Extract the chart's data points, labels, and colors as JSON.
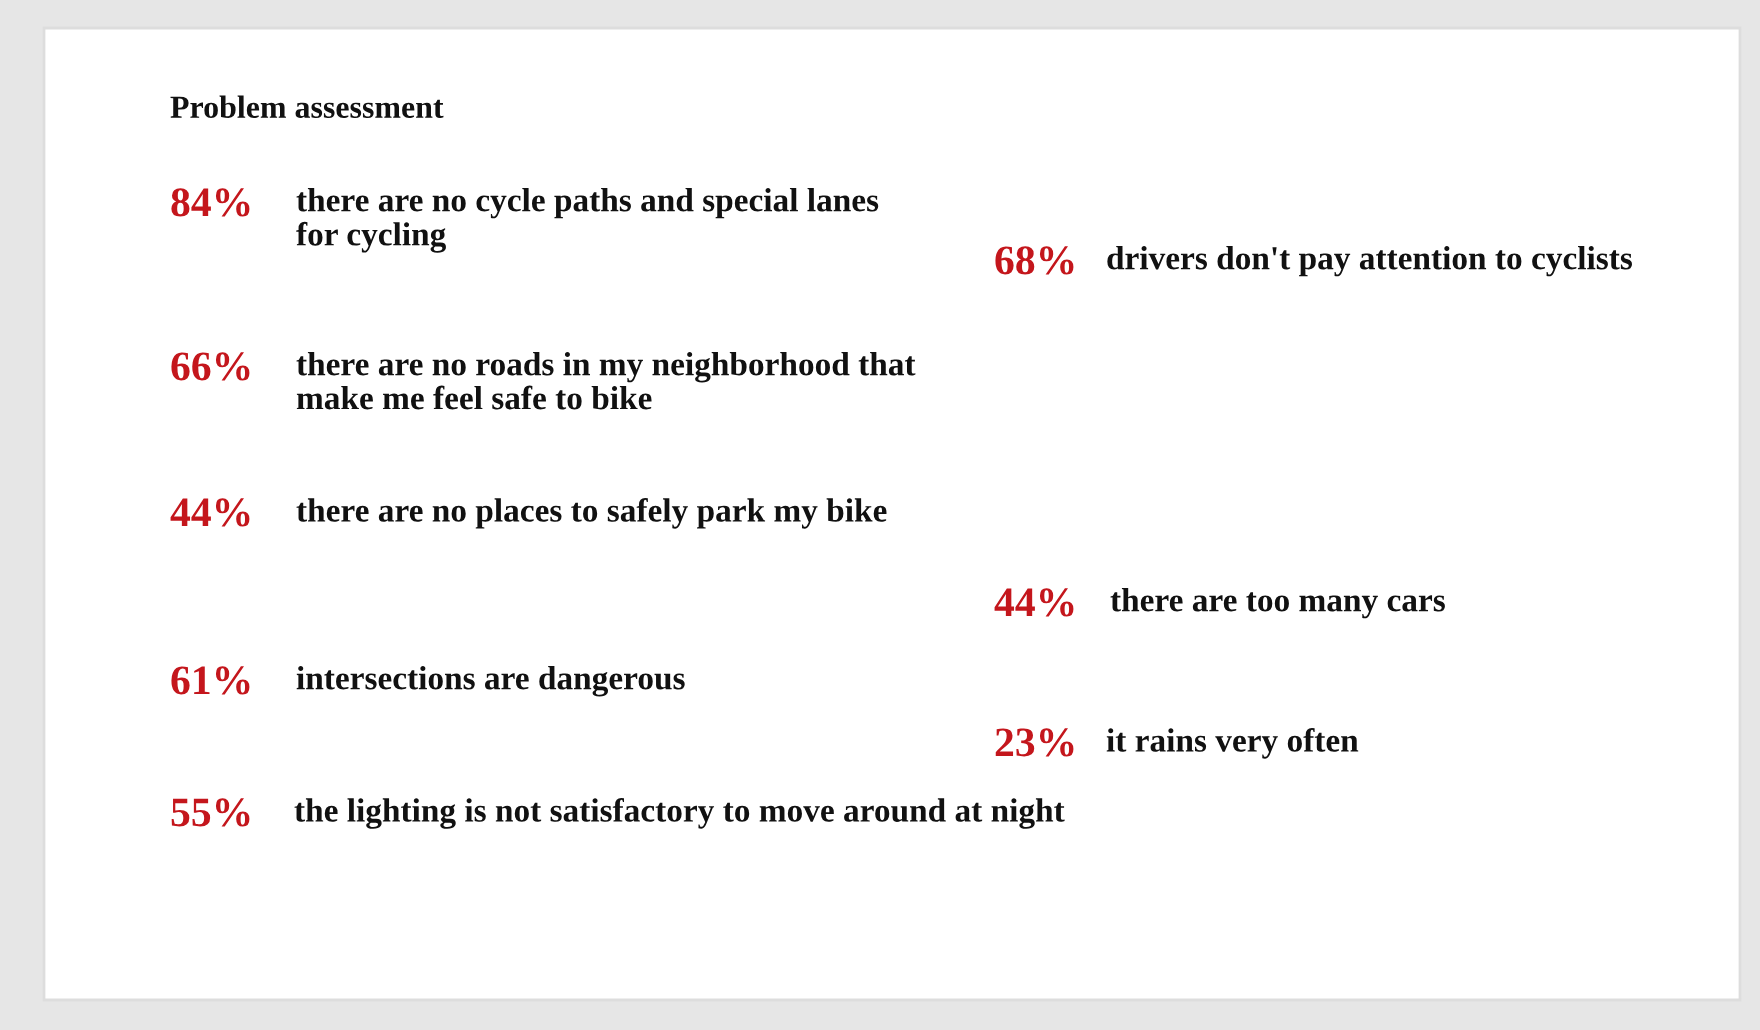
{
  "chart_data": {
    "type": "other",
    "title": "Problem assessment",
    "categories": [
      "there are no cycle paths and special lanes for cycling",
      "drivers don't pay attention to cyclists",
      "there are no roads in my neighborhood that make me feel safe to bike",
      "there are no places to safely park my bike",
      "there are too many cars",
      "intersections are dangerous",
      "it rains very often",
      "the lighting is not satisfactory to move around at night"
    ],
    "values": [
      84,
      68,
      66,
      44,
      44,
      61,
      23,
      55
    ],
    "value_labels": [
      "84%",
      "68%",
      "66%",
      "44%",
      "44%",
      "61%",
      "23%",
      "55%"
    ],
    "color": "#c4161c"
  }
}
